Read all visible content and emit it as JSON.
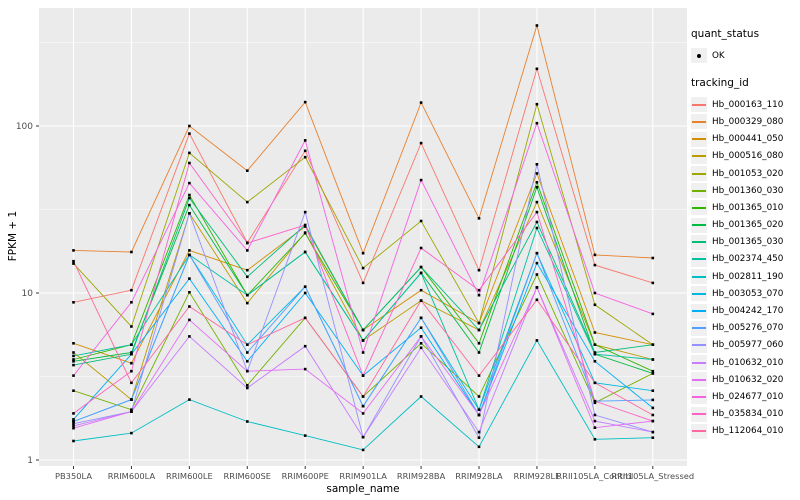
{
  "panel": {
    "bg_color": "#EBEBEB",
    "grid_color": "#FFFFFF",
    "tick_text_color": "#4D4D4D",
    "point_color": "#000000"
  },
  "legend": {
    "quant_status": {
      "title": "quant_status",
      "items": [
        {
          "label": "OK",
          "symbol": "point"
        }
      ]
    },
    "tracking_id": {
      "title": "tracking_id"
    }
  },
  "chart_data": {
    "type": "line",
    "title": "",
    "xlabel": "sample_name",
    "ylabel": "FPKM + 1",
    "y_scale": "log10",
    "y_ticks": [
      1,
      10,
      100
    ],
    "ylim": [
      0.93,
      520
    ],
    "grid": true,
    "legend_position": "right",
    "marker": "black point on every value",
    "categories": [
      "PB350LA",
      "RRIM600LA",
      "RRIM600LE",
      "RRIM600SE",
      "RRIM600PE",
      "RRIM901LA",
      "RRIM928BA",
      "RRIM928LA",
      "RRIM928LE",
      "RRII105LA_Control",
      "RRII105LA_Stressed"
    ],
    "series": [
      {
        "name": "Hb_000163_110",
        "color": "#F8766D",
        "values": [
          8.8,
          10.4,
          90,
          20,
          71,
          11.5,
          79,
          13.7,
          220,
          14.7,
          11.5
        ]
      },
      {
        "name": "Hb_000329_080",
        "color": "#E8812E",
        "values": [
          18,
          17.6,
          100,
          54,
          139,
          17.3,
          138,
          28,
          400,
          16.9,
          16.2
        ]
      },
      {
        "name": "Hb_000441_050",
        "color": "#D28E00",
        "values": [
          5.0,
          3.8,
          18,
          13.7,
          25,
          6.0,
          10.4,
          6.6,
          52,
          5.8,
          4.9
        ]
      },
      {
        "name": "Hb_000516_080",
        "color": "#BB9900",
        "values": [
          4.4,
          2.3,
          30,
          8.7,
          23,
          5.2,
          9.0,
          6.0,
          35,
          4.9,
          4.0
        ]
      },
      {
        "name": "Hb_001053_020",
        "color": "#9DA700",
        "values": [
          15,
          6.3,
          69,
          35,
          65,
          14.1,
          27,
          6.6,
          135,
          8.5,
          4.9
        ]
      },
      {
        "name": "Hb_001360_030",
        "color": "#72B000",
        "values": [
          2.6,
          2.0,
          10.1,
          2.8,
          7.1,
          2.4,
          5.0,
          2.4,
          12.9,
          2.2,
          3.3
        ]
      },
      {
        "name": "Hb_001365_010",
        "color": "#2FB600",
        "values": [
          4.0,
          4.9,
          38.6,
          9.7,
          22.8,
          6.0,
          14.3,
          5.0,
          46,
          4.9,
          3.4
        ]
      },
      {
        "name": "Hb_001365_020",
        "color": "#00BA42",
        "values": [
          3.9,
          4.4,
          33.6,
          9.7,
          17.6,
          5.2,
          13.2,
          4.4,
          43,
          4.3,
          3.3
        ]
      },
      {
        "name": "Hb_001365_030",
        "color": "#00BD78",
        "values": [
          3.7,
          4.3,
          37,
          12.5,
          25.5,
          6.0,
          14.3,
          6.0,
          26.6,
          4.4,
          4.9
        ]
      },
      {
        "name": "Hb_002374_450",
        "color": "#00C0A2",
        "values": [
          4.2,
          4.9,
          16.9,
          9.7,
          17.6,
          5.2,
          13.2,
          2.0,
          24.5,
          4.3,
          4.0
        ]
      },
      {
        "name": "Hb_002811_190",
        "color": "#00BFC4",
        "values": [
          1.3,
          1.45,
          2.3,
          1.7,
          1.4,
          1.15,
          2.4,
          1.2,
          5.2,
          1.33,
          1.36
        ]
      },
      {
        "name": "Hb_003053_070",
        "color": "#00B9E1",
        "values": [
          1.7,
          2.3,
          16.9,
          4.9,
          10.9,
          2.1,
          7.1,
          2.0,
          17.3,
          2.9,
          2.6
        ]
      },
      {
        "name": "Hb_004242_170",
        "color": "#00AEF8",
        "values": [
          1.75,
          4.3,
          12.2,
          3.9,
          10.0,
          3.2,
          6.2,
          1.86,
          15.1,
          3.9,
          2.05
        ]
      },
      {
        "name": "Hb_005276_070",
        "color": "#529EFF",
        "values": [
          1.7,
          2.3,
          16.9,
          4.4,
          10.9,
          2.1,
          7.1,
          1.86,
          17.3,
          2.25,
          2.29
        ]
      },
      {
        "name": "Hb_005977_060",
        "color": "#9590FF",
        "values": [
          1.65,
          1.95,
          30,
          3.4,
          30.5,
          1.37,
          5.5,
          1.36,
          59,
          1.86,
          1.47
        ]
      },
      {
        "name": "Hb_010632_010",
        "color": "#C77CFF",
        "values": [
          1.6,
          1.95,
          5.5,
          2.7,
          4.8,
          1.37,
          4.7,
          1.47,
          10.8,
          1.71,
          1.47
        ]
      },
      {
        "name": "Hb_010632_020",
        "color": "#E36EF6",
        "values": [
          1.55,
          1.95,
          6.9,
          3.4,
          3.5,
          1.9,
          5.5,
          1.86,
          10.8,
          1.56,
          1.71
        ]
      },
      {
        "name": "Hb_024677_010",
        "color": "#F563E3",
        "values": [
          3.2,
          8.8,
          45.5,
          18,
          82,
          4.4,
          47.4,
          9.7,
          104,
          10,
          7.5
        ]
      },
      {
        "name": "Hb_035834_010",
        "color": "#FF61C7",
        "values": [
          1.9,
          3.4,
          60,
          19.9,
          25.5,
          3.2,
          18.6,
          10.4,
          30.5,
          2.25,
          1.71
        ]
      },
      {
        "name": "Hb_112064_010",
        "color": "#FF68A1",
        "values": [
          15.5,
          2.9,
          8.3,
          4.9,
          7.1,
          2.4,
          9.0,
          3.2,
          9.1,
          2.9,
          1.86
        ]
      }
    ]
  }
}
